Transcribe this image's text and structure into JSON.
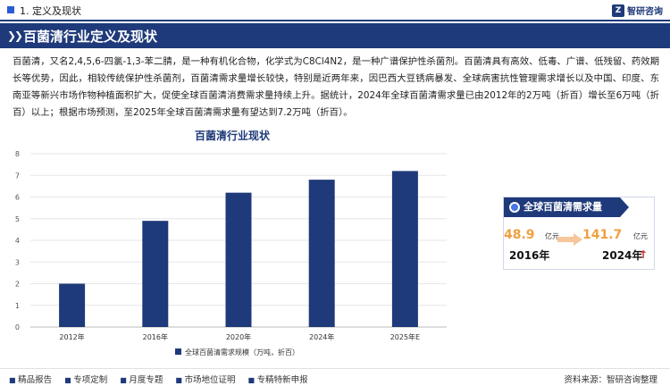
{
  "header": {
    "section_label": "1. 定义及现状",
    "brand": "智研咨询"
  },
  "banner": {
    "title": "百菌清行业定义及现状"
  },
  "paragraph": "百菌清，又名2,4,5,6-四氯-1,3-苯二腈，是一种有机化合物，化学式为C8Cl4N2，是一种广谱保护性杀菌剂。百菌清具有高效、低毒、广谱、低残留、药效期长等优势，因此，相较传统保护性杀菌剂，百菌清需求量增长较快，特别是近两年来，因巴西大豆锈病暴发、全球病害抗性管理需求增长以及中国、印度、东南亚等新兴市场作物种植面积扩大，促使全球百菌清消费需求量持续上升。据统计，2024年全球百菌清需求量已由2012年的2万吨（折百）增长至6万吨（折百）以上；根据市场预测，至2025年全球百菌清需求量有望达到7.2万吨（折百）。",
  "chart_data": {
    "type": "bar",
    "title": "百菌清行业现状",
    "categories": [
      "2012年",
      "2016年",
      "2020年",
      "2024年",
      "2025年E"
    ],
    "series": [
      {
        "name": "全球百菌清需求规模（万吨，折百）",
        "values": [
          2.0,
          4.9,
          6.2,
          6.8,
          7.2
        ]
      }
    ],
    "ylim": [
      0,
      8
    ],
    "yticks": [
      0,
      1,
      2,
      3,
      4,
      5,
      6,
      7,
      8
    ],
    "bar_color": "#1f3a7a",
    "grid": true,
    "legend_placement": "bottom"
  },
  "card": {
    "title": "全球百菌清需求量",
    "value_2016": "48.9",
    "unit_2016": "亿元",
    "year_2016": "2016年",
    "value_2024": "141.7",
    "unit_2024": "亿元",
    "year_2024": "2024年",
    "value_color": "#f0a040",
    "up_arrow": "↑"
  },
  "footer": {
    "links": [
      "精品报告",
      "专项定制",
      "月度专题",
      "市场地位证明",
      "专精特新申报"
    ],
    "source": "资料来源：智研咨询整理"
  },
  "colors": {
    "primary": "#1f3a7a",
    "accent": "#f0a040",
    "up": "#d42a2a"
  }
}
